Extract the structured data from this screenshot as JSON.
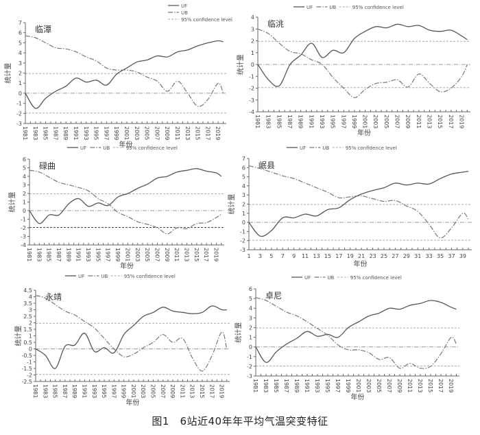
{
  "figure_caption": "图1　6站近40年年平均气温突变特征",
  "legend": [
    "UF",
    "UB",
    "95% confidence level"
  ],
  "chart_data": [
    {
      "type": "line",
      "title": "临潭",
      "xlabel": "年份",
      "ylabel": "统计量",
      "x": [
        1981,
        1983,
        1985,
        1987,
        1989,
        1991,
        1993,
        1995,
        1997,
        1999,
        2001,
        2003,
        2005,
        2007,
        2009,
        2011,
        2013,
        2015,
        2017,
        2019,
        2020
      ],
      "xticks": [
        "1981",
        "1983",
        "1985",
        "1987",
        "1989",
        "1991",
        "1993",
        "1995",
        "1997",
        "1999",
        "2001",
        "2003",
        "2005",
        "2007",
        "2009",
        "2011",
        "2013",
        "2015",
        "2017",
        "2019"
      ],
      "ylim": [
        -3,
        7
      ],
      "yticks": [
        "-3",
        "-2",
        "-1",
        "0",
        "1",
        "2",
        "3",
        "4",
        "5",
        "6",
        "7"
      ],
      "confidence": [
        1.96,
        -1.96
      ],
      "series": [
        {
          "name": "UF",
          "values": [
            0,
            -1.5,
            -0.5,
            0.2,
            0.7,
            1.5,
            1.1,
            1.3,
            0.8,
            1.9,
            2.5,
            3.1,
            3.3,
            3.7,
            3.6,
            4.1,
            4.3,
            4.7,
            5.0,
            5.2,
            5.1
          ]
        },
        {
          "name": "UB",
          "values": [
            5.7,
            5.5,
            5.0,
            4.5,
            4.4,
            4.1,
            3.6,
            3.2,
            2.5,
            2.3,
            2.3,
            2.1,
            1.6,
            1.2,
            0.2,
            1.2,
            0.0,
            -1.3,
            -0.6,
            1.0,
            0.0
          ]
        }
      ]
    },
    {
      "type": "line",
      "title": "临洮",
      "xlabel": "年份",
      "ylabel": "统计量",
      "x": [
        1981,
        1983,
        1985,
        1987,
        1989,
        1991,
        1993,
        1995,
        1997,
        1999,
        2001,
        2003,
        2005,
        2007,
        2009,
        2011,
        2013,
        2015,
        2017,
        2019,
        2020
      ],
      "xticks": [
        "1981",
        "1983",
        "1985",
        "1987",
        "1989",
        "1991",
        "1993",
        "1995",
        "1997",
        "1999",
        "2001",
        "2003",
        "2005",
        "2007",
        "2009",
        "2011",
        "2013",
        "2015",
        "2017",
        "2019"
      ],
      "ylim": [
        -4,
        4
      ],
      "yticks": [
        "-4",
        "-3",
        "-2",
        "-1",
        "0",
        "1",
        "2",
        "3",
        "4"
      ],
      "confidence": [
        1.96,
        -1.96
      ],
      "series": [
        {
          "name": "UF",
          "values": [
            0,
            -1.3,
            -1.8,
            0.0,
            0.8,
            1.8,
            0.6,
            1.2,
            1.0,
            2.2,
            2.8,
            3.2,
            3.1,
            3.4,
            3.2,
            3.3,
            2.9,
            2.8,
            2.9,
            2.4,
            2.1
          ]
        },
        {
          "name": "UB",
          "values": [
            3.0,
            2.6,
            1.8,
            1.1,
            0.9,
            0.4,
            0.0,
            -1.1,
            -2.0,
            -2.8,
            -2.1,
            -1.6,
            -1.5,
            -1.3,
            -1.9,
            -0.8,
            -1.6,
            -2.3,
            -2.0,
            -1.0,
            0.0
          ]
        }
      ]
    },
    {
      "type": "line",
      "title": "碌曲",
      "xlabel": "年份",
      "ylabel": "统计量",
      "x": [
        1981,
        1983,
        1985,
        1987,
        1989,
        1991,
        1993,
        1995,
        1997,
        1999,
        2001,
        2003,
        2005,
        2007,
        2009,
        2011,
        2013,
        2015,
        2017,
        2019,
        2020
      ],
      "xticks": [
        "1981",
        "1983",
        "1985",
        "1987",
        "1989",
        "1991",
        "1993",
        "1995",
        "1997",
        "1999",
        "2001",
        "2003",
        "2005",
        "2007",
        "2009",
        "2011",
        "2013",
        "2015",
        "2017",
        "2019"
      ],
      "ylim": [
        -4,
        6
      ],
      "yticks": [
        "-4",
        "-3",
        "-2",
        "-1",
        "0",
        "1",
        "2",
        "3",
        "4",
        "5",
        "6"
      ],
      "confidence": [
        1.96,
        -1.96
      ],
      "series": [
        {
          "name": "UF",
          "values": [
            0,
            -1.5,
            -0.5,
            -0.5,
            0.8,
            1.4,
            0.5,
            0.9,
            0.6,
            1.6,
            2.0,
            2.6,
            3.1,
            3.8,
            4.0,
            4.5,
            4.7,
            4.9,
            4.6,
            4.4,
            4.0
          ]
        },
        {
          "name": "UB",
          "values": [
            4.7,
            4.5,
            3.9,
            3.3,
            3.0,
            2.7,
            2.3,
            1.4,
            0.8,
            -0.2,
            -0.7,
            -1.3,
            -1.6,
            -2.0,
            -2.7,
            -2.0,
            -2.1,
            -1.5,
            -1.4,
            -0.8,
            -0.4
          ]
        }
      ]
    },
    {
      "type": "line",
      "title": "岷县",
      "xlabel": "年份",
      "ylabel": "统计量",
      "x": [
        1,
        3,
        5,
        7,
        9,
        11,
        13,
        15,
        17,
        19,
        21,
        23,
        25,
        27,
        29,
        31,
        33,
        35,
        37,
        39,
        40
      ],
      "xticks": [
        "1",
        "3",
        "5",
        "7",
        "9",
        "11",
        "13",
        "15",
        "17",
        "19",
        "21",
        "23",
        "25",
        "27",
        "29",
        "31",
        "33",
        "35",
        "37",
        "39"
      ],
      "ylim": [
        -3,
        7
      ],
      "yticks": [
        "-3",
        "-2",
        "-1",
        "0",
        "1",
        "2",
        "3",
        "4",
        "5",
        "6",
        "7"
      ],
      "confidence": [
        1.96,
        -1.96
      ],
      "series": [
        {
          "name": "UF",
          "values": [
            0,
            -1.5,
            -0.9,
            0.5,
            0.5,
            0.9,
            0.7,
            1.4,
            1.6,
            2.5,
            3.1,
            3.5,
            3.8,
            4.3,
            4.1,
            4.3,
            4.2,
            4.8,
            5.3,
            5.5,
            5.6
          ]
        },
        {
          "name": "UB",
          "values": [
            6.2,
            5.9,
            5.5,
            5.1,
            4.8,
            4.3,
            3.8,
            3.3,
            2.7,
            2.8,
            2.9,
            2.6,
            2.3,
            2.4,
            1.8,
            1.2,
            -0.2,
            -1.7,
            -0.6,
            1.0,
            0.3
          ]
        }
      ]
    },
    {
      "type": "line",
      "title": "永靖",
      "xlabel": "年份",
      "ylabel": "统计量",
      "x": [
        1981,
        1983,
        1985,
        1987,
        1989,
        1991,
        1993,
        1995,
        1997,
        1999,
        2001,
        2003,
        2005,
        2007,
        2009,
        2011,
        2013,
        2015,
        2017,
        2019,
        2020
      ],
      "xticks": [
        "1981",
        "1983",
        "1985",
        "1987",
        "1989",
        "1991",
        "1993",
        "1995",
        "1997",
        "1999",
        "2001",
        "2003",
        "2005",
        "2007",
        "2009",
        "2011",
        "2013",
        "2015",
        "2017",
        "2019"
      ],
      "ylim": [
        -2.5,
        4.5
      ],
      "yticks": [
        "-2.5",
        "-2",
        "-1.5",
        "-1",
        "-0.5",
        "0",
        "0.5",
        "1",
        "1.5",
        "2",
        "2.5",
        "3",
        "3.5",
        "4",
        "4.5"
      ],
      "confidence": [
        1.96,
        -1.96
      ],
      "series": [
        {
          "name": "UF",
          "values": [
            0,
            -0.5,
            -1.5,
            0.2,
            0.3,
            1.2,
            -0.2,
            0.1,
            -0.3,
            1.1,
            1.8,
            2.5,
            2.8,
            3.2,
            2.9,
            2.8,
            2.7,
            2.8,
            3.3,
            3.0,
            3.0
          ]
        },
        {
          "name": "UB",
          "values": [
            4.1,
            3.9,
            3.4,
            2.9,
            2.6,
            2.1,
            1.6,
            0.8,
            0.0,
            -0.6,
            -0.4,
            0.1,
            0.5,
            1.1,
            0.5,
            0.8,
            -0.7,
            -1.7,
            -0.5,
            1.3,
            0.0
          ]
        }
      ]
    },
    {
      "type": "line",
      "title": "卓尼",
      "xlabel": "年份",
      "ylabel": "统计量",
      "x": [
        1981,
        1983,
        1985,
        1987,
        1989,
        1991,
        1993,
        1995,
        1997,
        1999,
        2001,
        2003,
        2005,
        2007,
        2009,
        2011,
        2013,
        2015,
        2017,
        2019,
        2020
      ],
      "xticks": [
        "1981",
        "1983",
        "1985",
        "1987",
        "1989",
        "1991",
        "1993",
        "1995",
        "1997",
        "1999",
        "2001",
        "2003",
        "2005",
        "2007",
        "2009",
        "2011",
        "2013",
        "2015",
        "2017",
        "2019"
      ],
      "ylim": [
        -3,
        6
      ],
      "yticks": [
        "-3",
        "-2",
        "-1",
        "0",
        "1",
        "2",
        "3",
        "4",
        "5",
        "6"
      ],
      "confidence": [
        1.96,
        -1.96
      ],
      "series": [
        {
          "name": "UF",
          "values": [
            0,
            -1.6,
            -0.5,
            0.3,
            0.9,
            1.6,
            1.1,
            1.3,
            1.0,
            2.0,
            2.6,
            3.2,
            3.5,
            4.0,
            3.9,
            4.3,
            4.5,
            4.8,
            4.6,
            4.1,
            3.9
          ]
        },
        {
          "name": "UB",
          "values": [
            5.1,
            4.8,
            4.2,
            3.6,
            3.2,
            2.6,
            1.9,
            1.2,
            0.2,
            -0.3,
            -0.3,
            -0.6,
            -1.3,
            -1.1,
            -2.2,
            -1.7,
            -2.2,
            -2.0,
            -0.7,
            1.0,
            0.3
          ]
        }
      ]
    }
  ]
}
